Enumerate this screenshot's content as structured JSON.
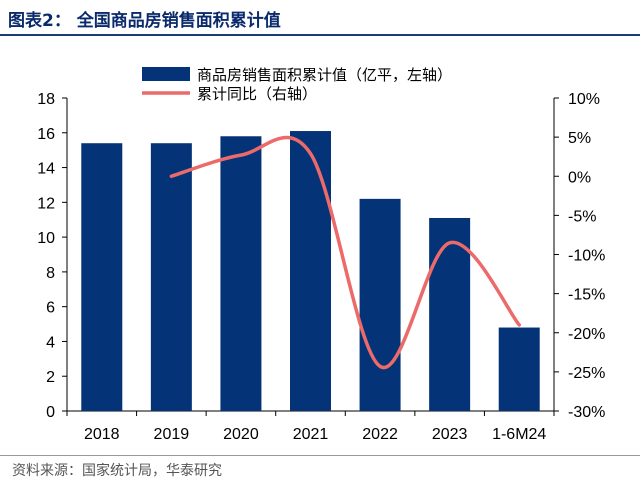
{
  "title": "图表2： 全国商品房销售面积累计值",
  "source": "资料来源：国家统计局，华泰研究",
  "chart_data": {
    "type": "bar+line",
    "categories": [
      "2018",
      "2019",
      "2020",
      "2021",
      "2022",
      "2023",
      "1-6M24"
    ],
    "series": [
      {
        "name": "商品房销售面积累计值（亿平，左轴）",
        "type": "bar",
        "axis": "left",
        "color": "#043477",
        "values": [
          15.4,
          15.4,
          15.8,
          16.1,
          12.2,
          11.1,
          4.8
        ]
      },
      {
        "name": "累计同比（右轴）",
        "type": "line",
        "axis": "right",
        "color": "#ec6a6a",
        "smooth": true,
        "values": [
          null,
          0.0,
          2.7,
          2.9,
          -24.3,
          -8.5,
          -19.0
        ]
      }
    ],
    "ylim_left": [
      0,
      18
    ],
    "yticks_left": [
      "0",
      "2",
      "4",
      "6",
      "8",
      "10",
      "12",
      "14",
      "16",
      "18"
    ],
    "ylim_right": [
      -30,
      10
    ],
    "yticks_right": [
      "-30%",
      "-25%",
      "-20%",
      "-15%",
      "-10%",
      "-5%",
      "0%",
      "5%",
      "10%"
    ],
    "grid": false,
    "legend": "top"
  }
}
